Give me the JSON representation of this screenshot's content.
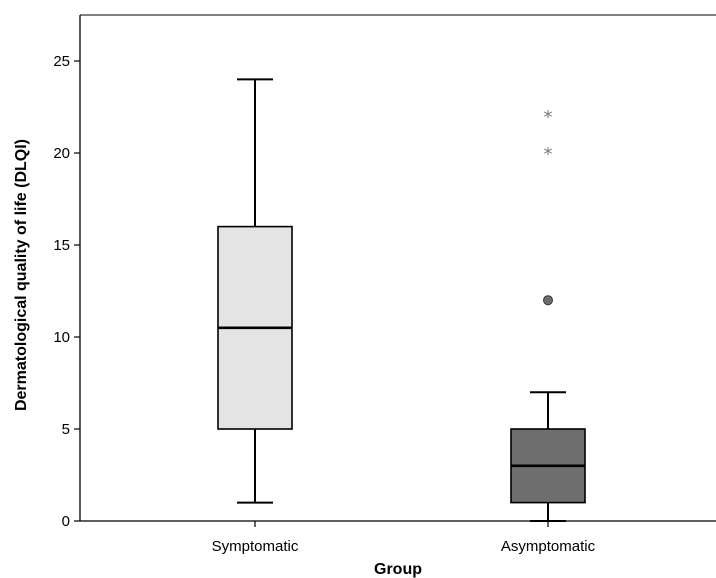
{
  "chart_data": {
    "type": "boxplot",
    "title": "",
    "xlabel": "Group",
    "ylabel": "Dermatological quality of life (DLQI)",
    "ylim": [
      0,
      27.5
    ],
    "yticks": [
      0,
      5,
      10,
      15,
      20,
      25
    ],
    "grid": false,
    "categories": [
      "Symptomatic",
      "Asymptomatic"
    ],
    "boxes": [
      {
        "category": "Symptomatic",
        "whisker_low": 1,
        "q1": 5,
        "median": 10.5,
        "q3": 16,
        "whisker_high": 24,
        "outliers": [],
        "extremes": [],
        "fill": "#e4e4e4"
      },
      {
        "category": "Asymptomatic",
        "whisker_low": 0,
        "q1": 1,
        "median": 3,
        "q3": 5,
        "whisker_high": 7,
        "outliers": [
          12
        ],
        "extremes": [
          20,
          22
        ],
        "fill": "#6e6e6e"
      }
    ]
  }
}
